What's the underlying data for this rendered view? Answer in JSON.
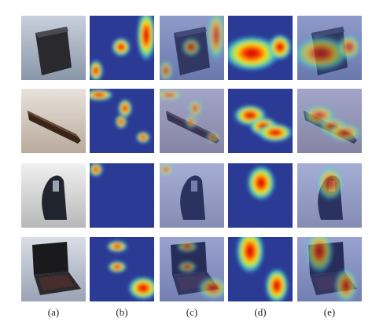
{
  "figure": {
    "column_labels": [
      "(a)",
      "(b)",
      "(c)",
      "(d)",
      "(e)"
    ]
  }
}
